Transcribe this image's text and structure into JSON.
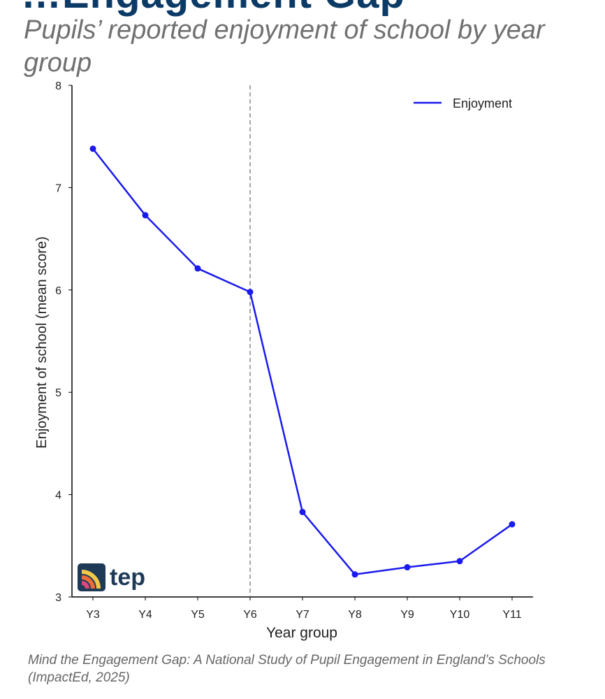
{
  "header": {
    "cut_title": "…Engagement Gap"
  },
  "subtitle": "Pupils’ reported enjoyment of school by year group",
  "caption": "Mind the Engagement Gap: A National Study of Pupil Engagement in England’s Schools (ImpactEd, 2025)",
  "logo": {
    "text": "tep",
    "colors": {
      "mark": "#1e3a57",
      "arc_outer": "#f2c84b",
      "arc_mid": "#ef6c3a",
      "arc_inner": "#e0457b"
    }
  },
  "colors": {
    "series": "#1a1aee",
    "divider": "#888888",
    "axis": "#000000"
  },
  "chart_data": {
    "type": "line",
    "categories": [
      "Y3",
      "Y4",
      "Y5",
      "Y6",
      "Y7",
      "Y8",
      "Y9",
      "Y10",
      "Y11"
    ],
    "series": [
      {
        "name": "Enjoyment",
        "values": [
          7.38,
          6.73,
          6.21,
          5.98,
          3.83,
          3.22,
          3.29,
          3.35,
          3.71
        ]
      }
    ],
    "xlabel": "Year group",
    "ylabel": "Enjoyment of school (mean score)",
    "ylim": [
      3,
      8
    ],
    "yticks": [
      3,
      4,
      5,
      6,
      7,
      8
    ],
    "reference_line_at": "Y6",
    "legend_position": "top-right",
    "grid": false
  }
}
